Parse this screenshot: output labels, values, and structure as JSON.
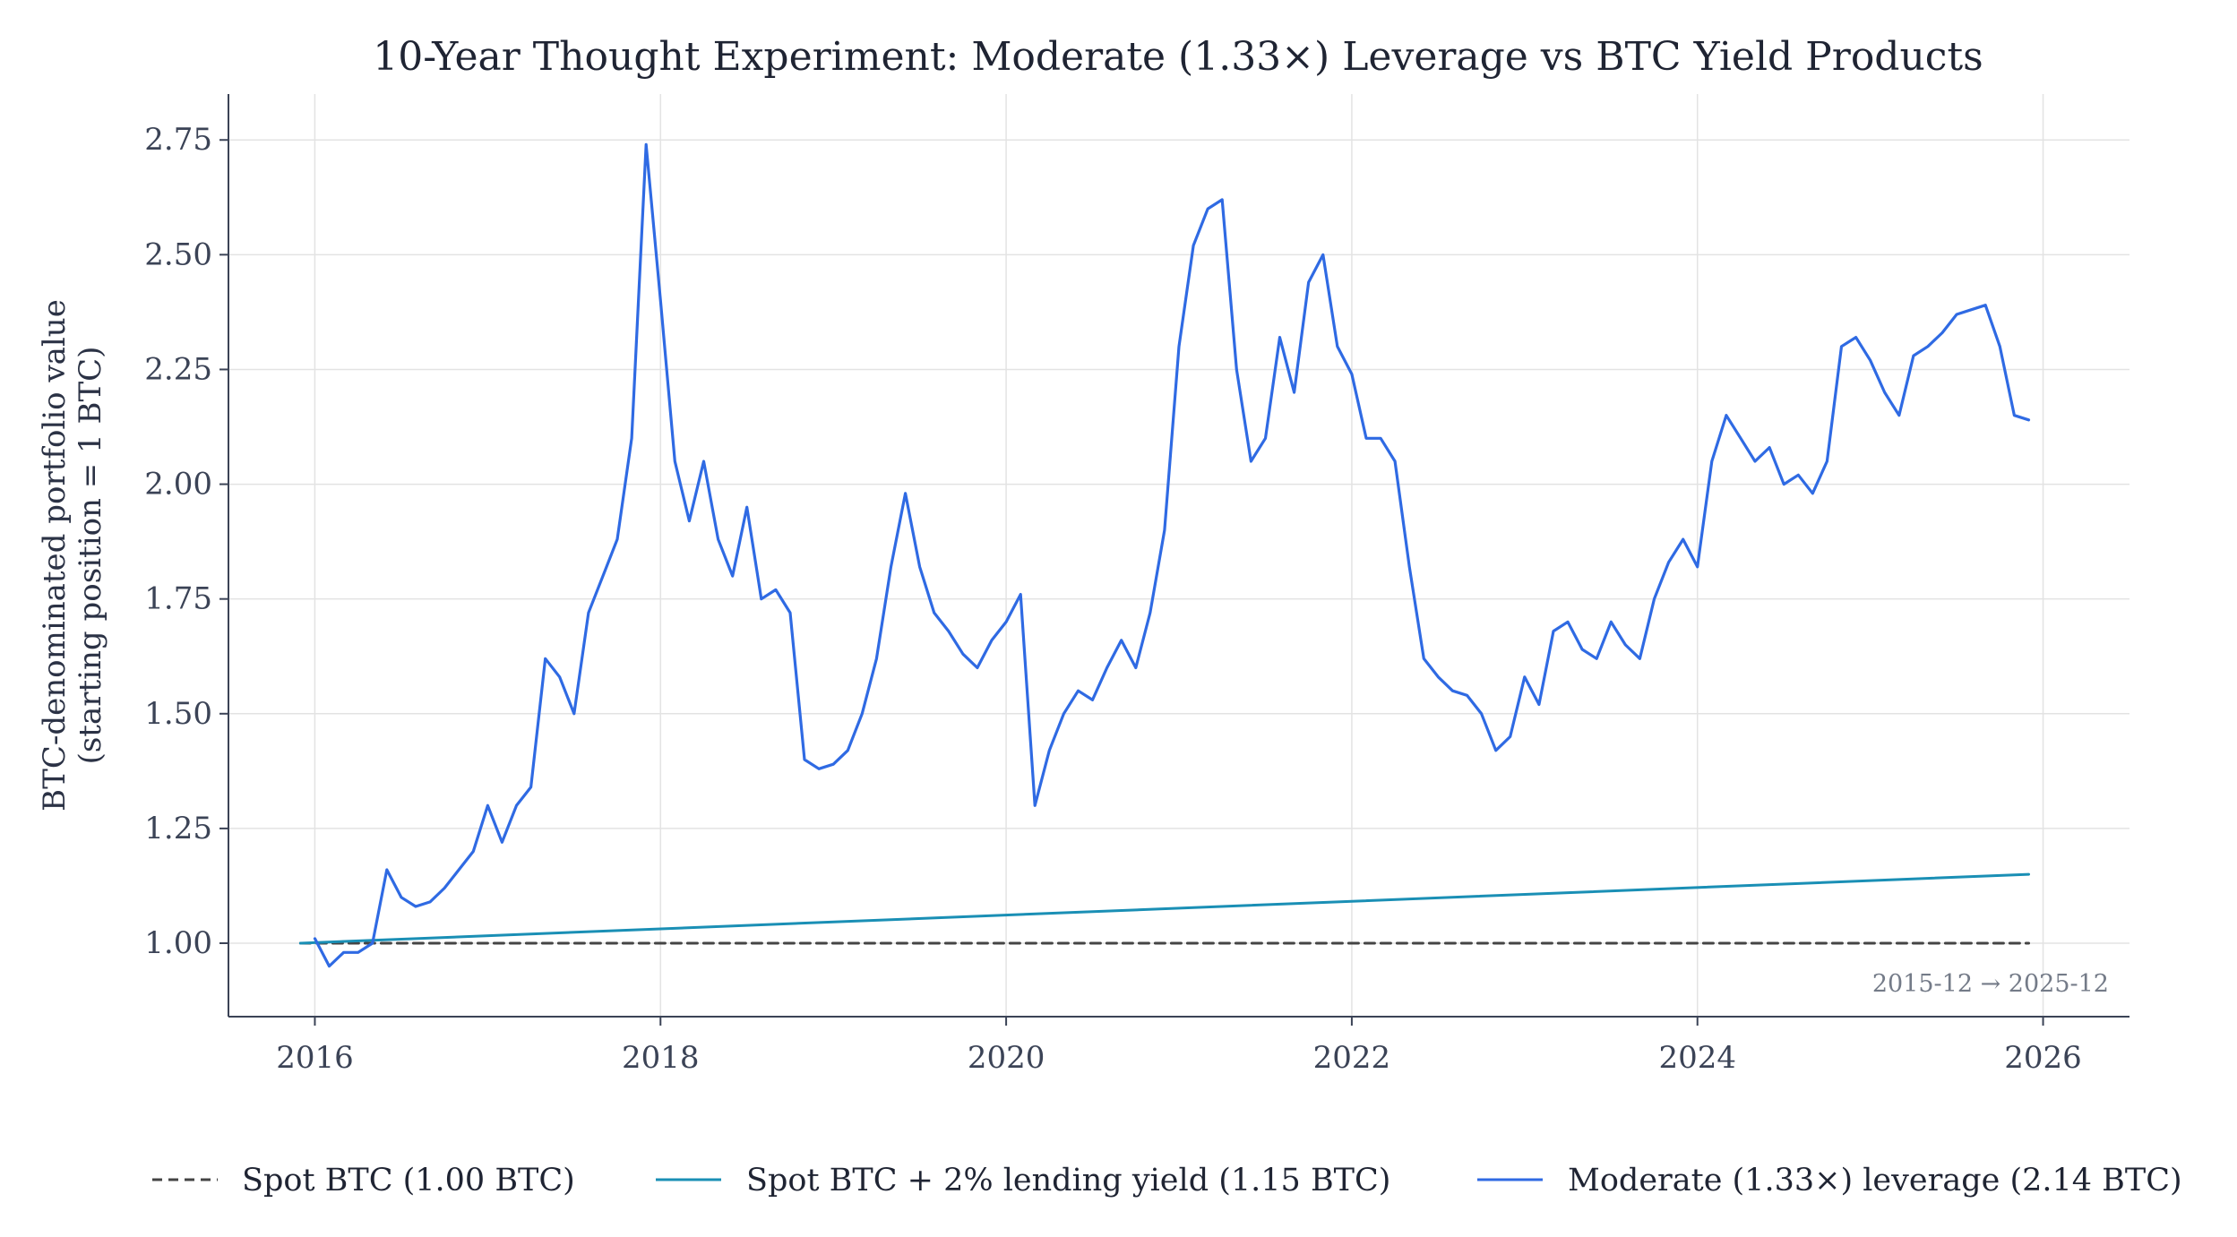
{
  "colors": {
    "spot": "#444444",
    "lending": "#1a8fb5",
    "leverage": "#2f6ae3",
    "grid": "#e3e3e3",
    "axis": "#3b4356"
  },
  "chart_data": {
    "type": "line",
    "title": "10-Year Thought Experiment: Moderate (1.33×) Leverage vs BTC Yield Products",
    "ylabel_line1": "BTC-denominated portfolio value",
    "ylabel_line2": "(starting position = 1 BTC)",
    "xlabel": "",
    "annotation": "2015-12 → 2025-12",
    "xlim": [
      "2015-07",
      "2026-07"
    ],
    "ylim": [
      0.84,
      2.85
    ],
    "x_ticks": [
      "2016",
      "2018",
      "2020",
      "2022",
      "2024",
      "2026"
    ],
    "y_ticks": [
      "1.00",
      "1.25",
      "1.50",
      "1.75",
      "2.00",
      "2.25",
      "2.50",
      "2.75"
    ],
    "grid": true,
    "legend_position": "bottom",
    "series": [
      {
        "name": "Spot BTC  (1.00 BTC)",
        "style": "dashed",
        "x": [
          "2015-12",
          "2025-12"
        ],
        "y": [
          1.0,
          1.0
        ]
      },
      {
        "name": "Spot BTC + 2% lending yield  (1.15 BTC)",
        "style": "solid",
        "x": [
          "2015-12",
          "2025-12"
        ],
        "y": [
          1.0,
          1.15
        ]
      },
      {
        "name": "Moderate (1.33×) leverage  (2.14 BTC)",
        "style": "solid",
        "x": [
          "2016-01",
          "2016-02",
          "2016-03",
          "2016-04",
          "2016-05",
          "2016-06",
          "2016-07",
          "2016-08",
          "2016-09",
          "2016-10",
          "2016-11",
          "2016-12",
          "2017-01",
          "2017-02",
          "2017-03",
          "2017-04",
          "2017-05",
          "2017-06",
          "2017-07",
          "2017-08",
          "2017-09",
          "2017-10",
          "2017-11",
          "2017-12",
          "2018-01",
          "2018-02",
          "2018-03",
          "2018-04",
          "2018-05",
          "2018-06",
          "2018-07",
          "2018-08",
          "2018-09",
          "2018-10",
          "2018-11",
          "2018-12",
          "2019-01",
          "2019-02",
          "2019-03",
          "2019-04",
          "2019-05",
          "2019-06",
          "2019-07",
          "2019-08",
          "2019-09",
          "2019-10",
          "2019-11",
          "2019-12",
          "2020-01",
          "2020-02",
          "2020-03",
          "2020-04",
          "2020-05",
          "2020-06",
          "2020-07",
          "2020-08",
          "2020-09",
          "2020-10",
          "2020-11",
          "2020-12",
          "2021-01",
          "2021-02",
          "2021-03",
          "2021-04",
          "2021-05",
          "2021-06",
          "2021-07",
          "2021-08",
          "2021-09",
          "2021-10",
          "2021-11",
          "2021-12",
          "2022-01",
          "2022-02",
          "2022-03",
          "2022-04",
          "2022-05",
          "2022-06",
          "2022-07",
          "2022-08",
          "2022-09",
          "2022-10",
          "2022-11",
          "2022-12",
          "2023-01",
          "2023-02",
          "2023-03",
          "2023-04",
          "2023-05",
          "2023-06",
          "2023-07",
          "2023-08",
          "2023-09",
          "2023-10",
          "2023-11",
          "2023-12",
          "2024-01",
          "2024-02",
          "2024-03",
          "2024-04",
          "2024-05",
          "2024-06",
          "2024-07",
          "2024-08",
          "2024-09",
          "2024-10",
          "2024-11",
          "2024-12",
          "2025-01",
          "2025-02",
          "2025-03",
          "2025-04",
          "2025-05",
          "2025-06",
          "2025-07",
          "2025-08",
          "2025-09",
          "2025-10",
          "2025-11",
          "2025-12"
        ],
        "y": [
          1.01,
          0.95,
          0.98,
          0.98,
          1.0,
          1.16,
          1.1,
          1.08,
          1.09,
          1.12,
          1.16,
          1.2,
          1.3,
          1.22,
          1.3,
          1.34,
          1.62,
          1.58,
          1.5,
          1.72,
          1.8,
          1.88,
          2.1,
          2.74,
          2.4,
          2.05,
          1.92,
          2.05,
          1.88,
          1.8,
          1.95,
          1.75,
          1.77,
          1.72,
          1.4,
          1.38,
          1.39,
          1.42,
          1.5,
          1.62,
          1.82,
          1.98,
          1.82,
          1.72,
          1.68,
          1.63,
          1.6,
          1.66,
          1.7,
          1.76,
          1.3,
          1.42,
          1.5,
          1.55,
          1.53,
          1.6,
          1.66,
          1.6,
          1.72,
          1.9,
          2.3,
          2.52,
          2.6,
          2.62,
          2.25,
          2.05,
          2.1,
          2.32,
          2.2,
          2.44,
          2.5,
          2.3,
          2.24,
          2.1,
          2.1,
          2.05,
          1.82,
          1.62,
          1.58,
          1.55,
          1.54,
          1.5,
          1.42,
          1.45,
          1.58,
          1.52,
          1.68,
          1.7,
          1.64,
          1.62,
          1.7,
          1.65,
          1.62,
          1.75,
          1.83,
          1.88,
          1.82,
          2.05,
          2.15,
          2.1,
          2.05,
          2.08,
          2.0,
          2.02,
          1.98,
          2.05,
          2.3,
          2.32,
          2.27,
          2.2,
          2.15,
          2.28,
          2.3,
          2.33,
          2.37,
          2.38,
          2.39,
          2.3,
          2.15,
          2.14
        ]
      }
    ]
  },
  "legend": {
    "items": [
      "Spot BTC  (1.00 BTC)",
      "Spot BTC + 2% lending yield  (1.15 BTC)",
      "Moderate (1.33×) leverage  (2.14 BTC)"
    ]
  }
}
